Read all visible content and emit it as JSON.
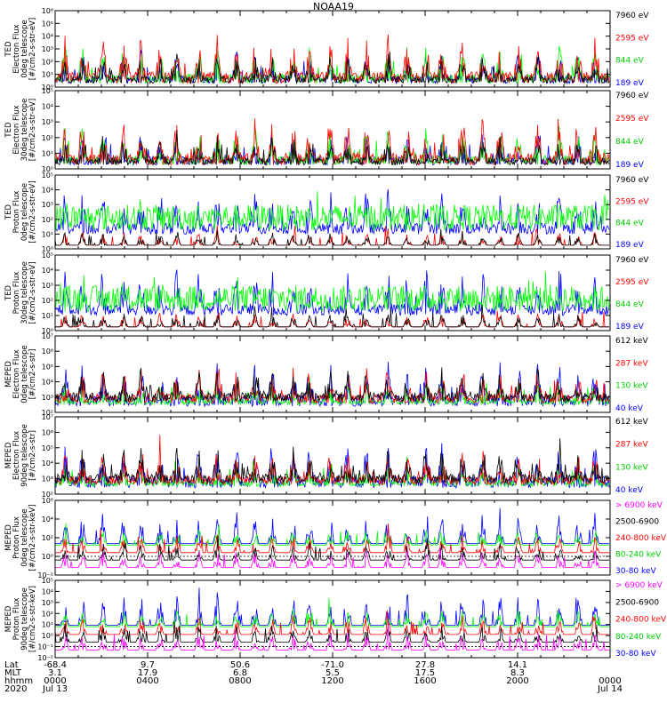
{
  "title": "NOAA19",
  "colors": {
    "black": "#000000",
    "red": "#ff0000",
    "green": "#00ff00",
    "green_dark": "#00cc00",
    "blue": "#0000ff",
    "magenta": "#ff00ff"
  },
  "chart_data": [
    {
      "type": "line",
      "ylabel": [
        "TED",
        "Electron Flux",
        "0deg telescope",
        "[#/cm2-s-str-eV]"
      ],
      "yscale": "log",
      "ylim": [
        1,
        1000000
      ],
      "ytick_labels": [
        "10⁰",
        "10¹",
        "10²",
        "10³",
        "10⁴",
        "10⁵",
        "10⁶"
      ],
      "series": [
        {
          "name": "7960 eV",
          "color": "black"
        },
        {
          "name": "2595 eV",
          "color": "red"
        },
        {
          "name": "844 eV",
          "color": "green"
        },
        {
          "name": "189 eV",
          "color": "blue"
        }
      ]
    },
    {
      "type": "line",
      "ylabel": [
        "TED",
        "Electron Flux",
        "30deg telescope",
        "[#/cm2-s-str-eV]"
      ],
      "yscale": "log",
      "ylim": [
        1,
        100000
      ],
      "ytick_labels": [
        "10⁰",
        "10¹",
        "10²",
        "10³",
        "10⁴",
        "10⁵"
      ],
      "series": [
        {
          "name": "7960 eV",
          "color": "black"
        },
        {
          "name": "2595 eV",
          "color": "red"
        },
        {
          "name": "844 eV",
          "color": "green"
        },
        {
          "name": "189 eV",
          "color": "blue"
        }
      ]
    },
    {
      "type": "line",
      "ylabel": [
        "TED",
        "Proton Flux",
        "0deg telescope",
        "[#/cm2-s-str-eV]"
      ],
      "yscale": "log",
      "ylim": [
        1,
        100000
      ],
      "ytick_labels": [
        "10⁰",
        "10¹",
        "10²",
        "10³",
        "10⁴",
        "10⁵"
      ],
      "series": [
        {
          "name": "7960 eV",
          "color": "black"
        },
        {
          "name": "2595 eV",
          "color": "red"
        },
        {
          "name": "844 eV",
          "color": "green"
        },
        {
          "name": "189 eV",
          "color": "blue"
        }
      ]
    },
    {
      "type": "line",
      "ylabel": [
        "TED",
        "Proton Flux",
        "30deg telescope",
        "[#/cm2-s-str-eV]"
      ],
      "yscale": "log",
      "ylim": [
        1,
        100000
      ],
      "ytick_labels": [
        "10⁰",
        "10¹",
        "10²",
        "10³",
        "10⁴",
        "10⁵"
      ],
      "series": [
        {
          "name": "7960 eV",
          "color": "black"
        },
        {
          "name": "2595 eV",
          "color": "red"
        },
        {
          "name": "844 eV",
          "color": "green"
        },
        {
          "name": "189 eV",
          "color": "blue"
        }
      ]
    },
    {
      "type": "line",
      "ylabel": [
        "MEPED",
        "Electron Flux",
        "0deg telescope",
        "[#/cm2-s-str]"
      ],
      "yscale": "log",
      "ylim": [
        100,
        10000000
      ],
      "ytick_labels": [
        "10²",
        "10³",
        "10⁴",
        "10⁵",
        "10⁶",
        "10⁷"
      ],
      "series": [
        {
          "name": "612 keV",
          "color": "black"
        },
        {
          "name": "287 keV",
          "color": "red"
        },
        {
          "name": "130 keV",
          "color": "green"
        },
        {
          "name": "40 keV",
          "color": "blue"
        }
      ]
    },
    {
      "type": "line",
      "ylabel": [
        "MEPED",
        "Electron Flux",
        "90deg telescope",
        "[#/cm2-s-str]"
      ],
      "yscale": "log",
      "ylim": [
        100,
        10000000
      ],
      "ytick_labels": [
        "10²",
        "10³",
        "10⁴",
        "10⁵",
        "10⁶",
        "10⁷"
      ],
      "series": [
        {
          "name": "612 keV",
          "color": "black"
        },
        {
          "name": "287 keV",
          "color": "red"
        },
        {
          "name": "130 keV",
          "color": "green"
        },
        {
          "name": "40 keV",
          "color": "blue"
        }
      ]
    },
    {
      "type": "line",
      "ylabel": [
        "MEPED",
        "Proton Flux",
        "0deg telescope",
        "[#/cm2-s-str-keV]"
      ],
      "yscale": "log",
      "ylim": [
        0.01,
        1000000
      ],
      "ytick_labels": [
        "10⁻²",
        "10⁰",
        "10²",
        "10⁴",
        "10⁶"
      ],
      "series": [
        {
          "name": "> 6900 keV",
          "color": "magenta"
        },
        {
          "name": "2500-6900",
          "color": "black"
        },
        {
          "name": "240-800 keV",
          "color": "red"
        },
        {
          "name": "80-240 keV",
          "color": "green"
        },
        {
          "name": "30-80 keV",
          "color": "blue"
        }
      ]
    },
    {
      "type": "line",
      "ylabel": [
        "MEPED",
        "Proton Flux",
        "90deg telescope",
        "[#/cm2-s-str-keV]"
      ],
      "yscale": "log",
      "ylim": [
        0.01,
        100000
      ],
      "ytick_labels": [
        "10⁻²",
        "10⁻¹",
        "10⁰",
        "10¹",
        "10²",
        "10³",
        "10⁴",
        "10⁵"
      ],
      "series": [
        {
          "name": "> 6900 keV",
          "color": "magenta"
        },
        {
          "name": "2500-6900",
          "color": "black"
        },
        {
          "name": "240-800 keV",
          "color": "red"
        },
        {
          "name": "80-240 keV",
          "color": "green"
        },
        {
          "name": "30-80 keV",
          "color": "blue"
        }
      ]
    }
  ],
  "footer": {
    "row_labels": [
      "Lat",
      "MLT",
      "hhmm",
      "2020"
    ],
    "columns": [
      {
        "lat": "-68.4",
        "mlt": "3.1",
        "hhmm": "0000",
        "date": "Jul 13"
      },
      {
        "lat": "9.7",
        "mlt": "17.9",
        "hhmm": "0400",
        "date": ""
      },
      {
        "lat": "50.6",
        "mlt": "6.8",
        "hhmm": "0800",
        "date": ""
      },
      {
        "lat": "-71.0",
        "mlt": "5.5",
        "hhmm": "1200",
        "date": ""
      },
      {
        "lat": "27.8",
        "mlt": "17.5",
        "hhmm": "1600",
        "date": ""
      },
      {
        "lat": "14.1",
        "mlt": "8.3",
        "hhmm": "2000",
        "date": ""
      },
      {
        "lat": "",
        "mlt": "",
        "hhmm": "0000",
        "date": "Jul 14"
      }
    ]
  }
}
